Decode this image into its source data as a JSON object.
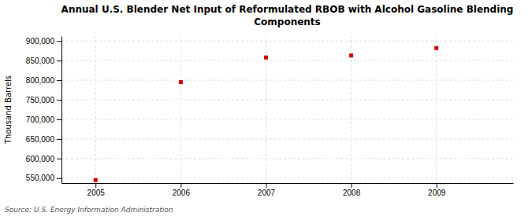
{
  "chart_data": {
    "type": "scatter",
    "title": "Annual U.S. Blender Net Input of Reformulated RBOB with Alcohol Gasoline Blending\nComponents",
    "y_label": "Thousand Barrels",
    "source": "Source: U.S. Energy Information Administration",
    "x": [
      2005,
      2006,
      2007,
      2008,
      2009
    ],
    "values": [
      545000,
      795000,
      858000,
      863000,
      882000
    ],
    "color": "#cc0000",
    "marker": "square",
    "xlim": [
      2004.6,
      2009.9
    ],
    "xticks": [
      2005,
      2006,
      2007,
      2008,
      2009
    ],
    "ylim": [
      537500,
      912500
    ],
    "yticks": [
      {
        "value": 550000,
        "label": "550,000"
      },
      {
        "value": 600000,
        "label": "600,000"
      },
      {
        "value": 650000,
        "label": "650,000"
      },
      {
        "value": 700000,
        "label": "700,000"
      },
      {
        "value": 750000,
        "label": "750,000"
      },
      {
        "value": 800000,
        "label": "800,000"
      },
      {
        "value": 850000,
        "label": "850,000"
      },
      {
        "value": 900000,
        "label": "900,000"
      }
    ],
    "grid": true
  }
}
